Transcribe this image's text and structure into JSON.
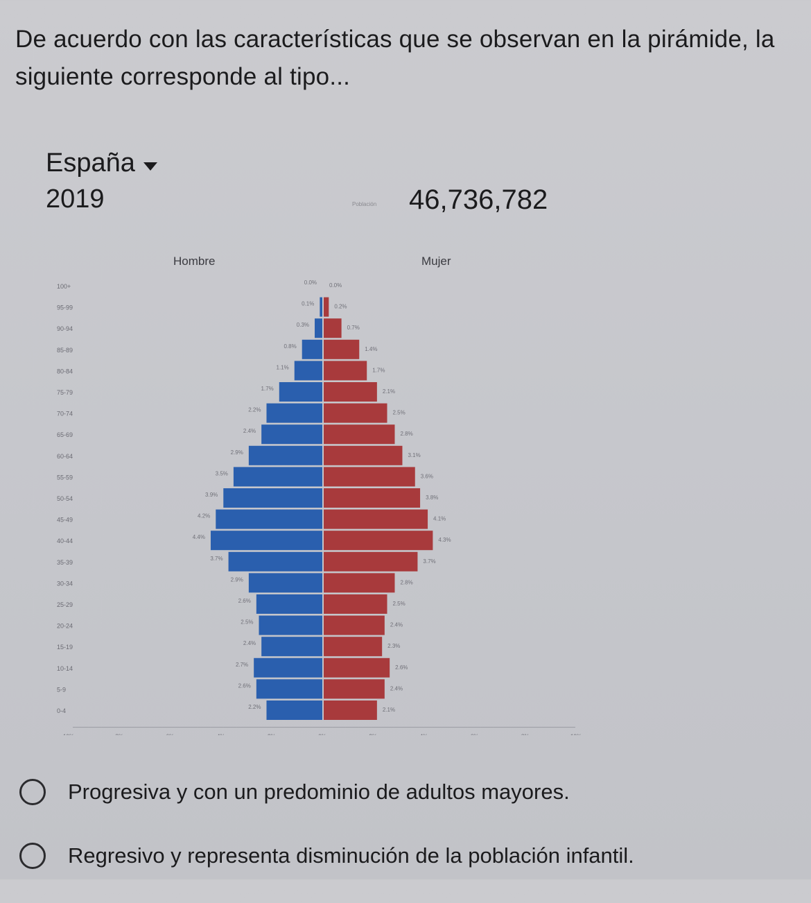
{
  "question": {
    "line1": "De acuerdo con las características que se observan en la pirámide, la",
    "line2": "siguiente corresponde al tipo..."
  },
  "header": {
    "country": "España",
    "dropdown_icon": "caret-down-icon",
    "year": "2019",
    "population_label": "Población",
    "population": "46,736,782"
  },
  "chart_data": {
    "type": "bar",
    "orientation": "horizontal-pyramid",
    "title": "",
    "age_groups": [
      "100+",
      "95-99",
      "90-94",
      "85-89",
      "80-84",
      "75-79",
      "70-74",
      "65-69",
      "60-64",
      "55-59",
      "50-54",
      "45-49",
      "40-44",
      "35-39",
      "30-34",
      "25-29",
      "20-24",
      "15-19",
      "10-14",
      "5-9",
      "0-4"
    ],
    "series": [
      {
        "name": "Hombre",
        "color": "#2a5fae",
        "values": [
          0.0,
          0.1,
          0.3,
          0.8,
          1.1,
          1.7,
          2.2,
          2.4,
          2.9,
          3.5,
          3.9,
          4.2,
          4.4,
          3.7,
          2.9,
          2.6,
          2.5,
          2.4,
          2.7,
          2.6,
          2.2
        ]
      },
      {
        "name": "Mujer",
        "color": "#a83a3c",
        "values": [
          0.0,
          0.2,
          0.7,
          1.4,
          1.7,
          2.1,
          2.5,
          2.8,
          3.1,
          3.6,
          3.8,
          4.1,
          4.3,
          3.7,
          2.8,
          2.5,
          2.4,
          2.3,
          2.6,
          2.4,
          2.1
        ]
      }
    ],
    "x_ticks": [
      "10%",
      "8%",
      "6%",
      "4%",
      "2%",
      "0%",
      "2%",
      "4%",
      "6%",
      "8%",
      "10%"
    ],
    "xlim": [
      -10,
      10
    ],
    "data_labels": {
      "hombre": [
        "0.0%",
        "0.1%",
        "0.3%",
        "0.8%",
        "1.1%",
        "1.7%",
        "2.2%",
        "2.4%",
        "2.9%",
        "3.5%",
        "3.9%",
        "4.2%",
        "4.4%",
        "3.7%",
        "2.9%",
        "2.6%",
        "2.5%",
        "2.4%",
        "2.7%",
        "2.6%",
        "2.2%"
      ],
      "mujer": [
        "0.0%",
        "0.2%",
        "0.7%",
        "1.4%",
        "1.7%",
        "2.1%",
        "2.5%",
        "2.8%",
        "3.1%",
        "3.6%",
        "3.8%",
        "4.1%",
        "4.3%",
        "3.7%",
        "2.8%",
        "2.5%",
        "2.4%",
        "2.3%",
        "2.6%",
        "2.4%",
        "2.1%"
      ]
    },
    "grid": false,
    "legend": "top"
  },
  "options": [
    {
      "label": "Progresiva y con un predominio de adultos mayores."
    },
    {
      "label": "Regresivo y representa disminución de la población infantil."
    }
  ]
}
